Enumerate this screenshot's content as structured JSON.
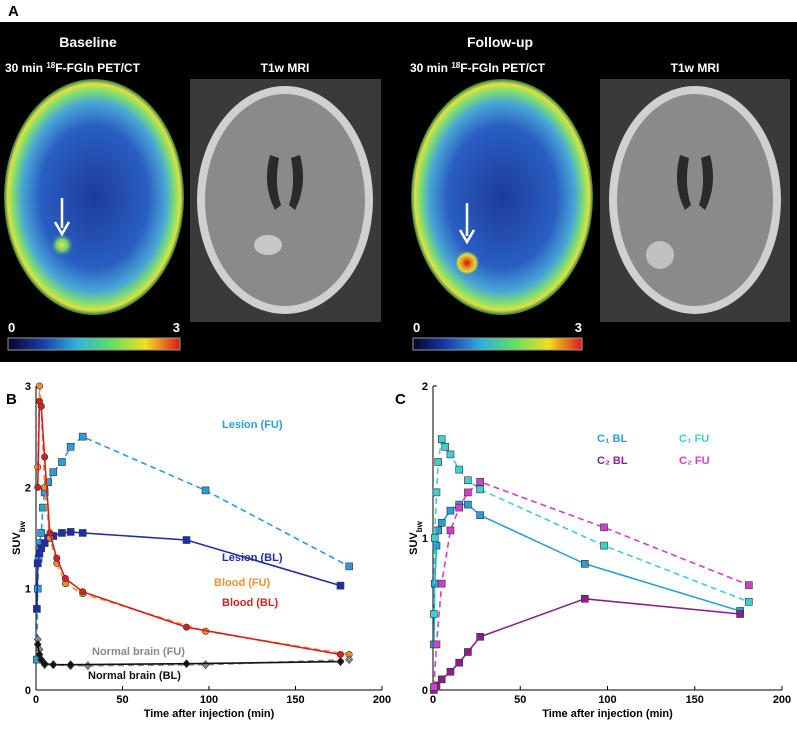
{
  "panel_a": {
    "label": "A",
    "panels": [
      {
        "title": "Baseline",
        "pet_title": {
          "pre": "30 min ",
          "sup": "18",
          "post": "F-FGln PET/CT"
        },
        "mri_title": "T1w MRI",
        "colorbar_ticks": [
          0,
          3
        ]
      },
      {
        "title": "Follow-up",
        "pet_title": {
          "pre": "30 min ",
          "sup": "18",
          "post": "F-FGln PET/CT"
        },
        "mri_title": "T1w MRI",
        "colorbar_ticks": [
          0,
          3
        ]
      }
    ]
  },
  "chart_data": [
    {
      "type": "line",
      "label": "B",
      "xlabel": "Time after injection (min)",
      "ylabel": "SUV",
      "ylabel_sub": "bw",
      "xlim": [
        0,
        200
      ],
      "xticks": [
        0,
        50,
        100,
        150,
        200
      ],
      "ylim": [
        0,
        3
      ],
      "yticks": [
        0,
        1,
        2,
        3
      ],
      "series": [
        {
          "name": "Lesion (FU)",
          "color": "#2b9ed8",
          "dash": true,
          "marker": "square",
          "x": [
            0.5,
            1,
            1.5,
            2,
            3,
            4,
            5,
            7,
            10,
            15,
            20,
            27,
            98,
            181
          ],
          "values": [
            0.3,
            1.0,
            1.3,
            1.45,
            1.55,
            1.8,
            1.95,
            2.05,
            2.15,
            2.25,
            2.4,
            2.5,
            1.97,
            1.22
          ]
        },
        {
          "name": "Lesion (BL)",
          "color": "#1e2ea8",
          "dash": false,
          "marker": "square",
          "x": [
            0.5,
            1,
            2,
            3,
            5,
            7,
            10,
            15,
            20,
            27,
            87,
            176
          ],
          "values": [
            0.8,
            1.25,
            1.35,
            1.4,
            1.45,
            1.5,
            1.52,
            1.55,
            1.56,
            1.55,
            1.48,
            1.03
          ]
        },
        {
          "name": "Blood (FU)",
          "color": "#f0902a",
          "dash": true,
          "marker": "circle",
          "x": [
            1,
            2,
            3,
            5,
            8,
            12,
            17,
            27,
            98,
            181
          ],
          "values": [
            2.2,
            3.0,
            2.8,
            2.0,
            1.5,
            1.25,
            1.05,
            0.95,
            0.58,
            0.35
          ]
        },
        {
          "name": "Blood (BL)",
          "color": "#d42020",
          "dash": false,
          "marker": "circle",
          "x": [
            1,
            2,
            3,
            5,
            8,
            12,
            17,
            27,
            87,
            176
          ],
          "values": [
            2.0,
            2.85,
            2.8,
            2.3,
            1.55,
            1.3,
            1.1,
            0.97,
            0.62,
            0.35
          ]
        },
        {
          "name": "Normal brain (FU)",
          "color": "#8a8a8a",
          "dash": true,
          "marker": "diamond",
          "x": [
            1,
            2,
            3,
            5,
            10,
            20,
            30,
            98,
            181
          ],
          "values": [
            0.5,
            0.4,
            0.3,
            0.25,
            0.25,
            0.24,
            0.24,
            0.25,
            0.3
          ]
        },
        {
          "name": "Normal brain (BL)",
          "color": "#111111",
          "dash": false,
          "marker": "diamond",
          "x": [
            1,
            2,
            3,
            5,
            10,
            20,
            87,
            176
          ],
          "values": [
            0.45,
            0.35,
            0.3,
            0.26,
            0.25,
            0.25,
            0.26,
            0.28
          ]
        }
      ]
    },
    {
      "type": "line",
      "label": "C",
      "xlabel": "Time after injection (min)",
      "ylabel": "SUV",
      "ylabel_sub": "bw",
      "xlim": [
        0,
        200
      ],
      "xticks": [
        0,
        50,
        100,
        150,
        200
      ],
      "ylim": [
        0,
        2
      ],
      "yticks": [
        0,
        1,
        2
      ],
      "series": [
        {
          "name": "C₁ BL",
          "color": "#2b9ed8",
          "dash": false,
          "marker": "square",
          "x": [
            0.5,
            1,
            2,
            3,
            5,
            10,
            15,
            20,
            27,
            87,
            176
          ],
          "values": [
            0.3,
            0.7,
            0.95,
            1.05,
            1.1,
            1.18,
            1.22,
            1.22,
            1.15,
            0.83,
            0.52
          ]
        },
        {
          "name": "C₁ FU",
          "color": "#3fcfcf",
          "dash": true,
          "marker": "square",
          "x": [
            0.5,
            1,
            2,
            3,
            5,
            7,
            10,
            15,
            20,
            27,
            98,
            181
          ],
          "values": [
            0.5,
            1.0,
            1.3,
            1.5,
            1.65,
            1.6,
            1.55,
            1.45,
            1.38,
            1.32,
            0.95,
            0.58
          ]
        },
        {
          "name": "C₂ BL",
          "color": "#8a2090",
          "dash": false,
          "marker": "square",
          "x": [
            0.5,
            2,
            5,
            10,
            15,
            20,
            27,
            87,
            176
          ],
          "values": [
            0.0,
            0.03,
            0.07,
            0.12,
            0.18,
            0.25,
            0.35,
            0.6,
            0.5
          ]
        },
        {
          "name": "C₂ FU",
          "color": "#d040d0",
          "dash": true,
          "marker": "square",
          "x": [
            0.5,
            2,
            5,
            10,
            15,
            20,
            27,
            98,
            181
          ],
          "values": [
            0.02,
            0.3,
            0.7,
            1.05,
            1.2,
            1.3,
            1.37,
            1.07,
            0.69
          ]
        }
      ]
    }
  ]
}
